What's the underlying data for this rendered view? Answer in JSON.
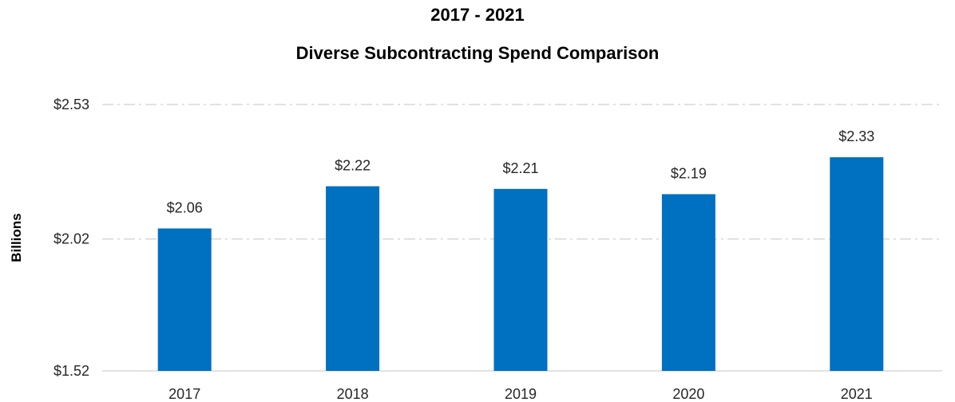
{
  "chart_data": {
    "type": "bar",
    "title_line1": "2017 - 2021",
    "title_line2": "Diverse Subcontracting Spend Comparison",
    "xlabel": "",
    "ylabel": "Billions",
    "categories": [
      "2017",
      "2018",
      "2019",
      "2020",
      "2021"
    ],
    "values": [
      2.06,
      2.22,
      2.21,
      2.19,
      2.33
    ],
    "value_labels": [
      "$2.06",
      "$2.22",
      "$2.21",
      "$2.19",
      "$2.33"
    ],
    "ylim": [
      1.52,
      2.53
    ],
    "yticks": [
      1.52,
      2.02,
      2.53
    ],
    "ytick_labels": [
      "$1.52",
      "$2.02",
      "$2.53"
    ],
    "grid": "horizontal dash-dot",
    "legend": "none",
    "bar_color": "#0070C0",
    "grid_color": "#D0D0D0",
    "baseline_color": "#D9D9D9"
  }
}
